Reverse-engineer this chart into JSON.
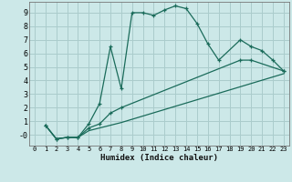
{
  "background_color": "#cce8e8",
  "grid_color": "#aacccc",
  "line_color": "#1a6b5a",
  "xlabel": "Humidex (Indice chaleur)",
  "xlim": [
    -0.5,
    23.5
  ],
  "ylim": [
    -0.8,
    9.8
  ],
  "xticks": [
    0,
    1,
    2,
    3,
    4,
    5,
    6,
    7,
    8,
    9,
    10,
    11,
    12,
    13,
    14,
    15,
    16,
    17,
    18,
    19,
    20,
    21,
    22,
    23
  ],
  "yticks": [
    0,
    1,
    2,
    3,
    4,
    5,
    6,
    7,
    8,
    9
  ],
  "ytick_labels": [
    "-0",
    "1",
    "2",
    "3",
    "4",
    "5",
    "6",
    "7",
    "8",
    "9"
  ],
  "line1_x": [
    1,
    2,
    3,
    4,
    5,
    6,
    7,
    8,
    9,
    10,
    11,
    12,
    13,
    14,
    15,
    16,
    17,
    19,
    20,
    21,
    22,
    23
  ],
  "line1_y": [
    0.7,
    -0.3,
    -0.2,
    -0.2,
    0.8,
    2.3,
    6.5,
    3.4,
    9.0,
    9.0,
    8.8,
    9.2,
    9.5,
    9.3,
    8.2,
    6.7,
    5.5,
    7.0,
    6.5,
    6.2,
    5.5,
    4.7
  ],
  "line2_x": [
    1,
    2,
    3,
    4,
    5,
    6,
    7,
    8,
    19,
    20,
    23
  ],
  "line2_y": [
    0.7,
    -0.3,
    -0.2,
    -0.2,
    0.5,
    0.8,
    1.6,
    2.0,
    5.5,
    5.5,
    4.7
  ],
  "line3_x": [
    1,
    2,
    3,
    4,
    5,
    6,
    7,
    8,
    23
  ],
  "line3_y": [
    0.7,
    -0.3,
    -0.2,
    -0.2,
    0.3,
    0.5,
    0.7,
    0.9,
    4.5
  ]
}
